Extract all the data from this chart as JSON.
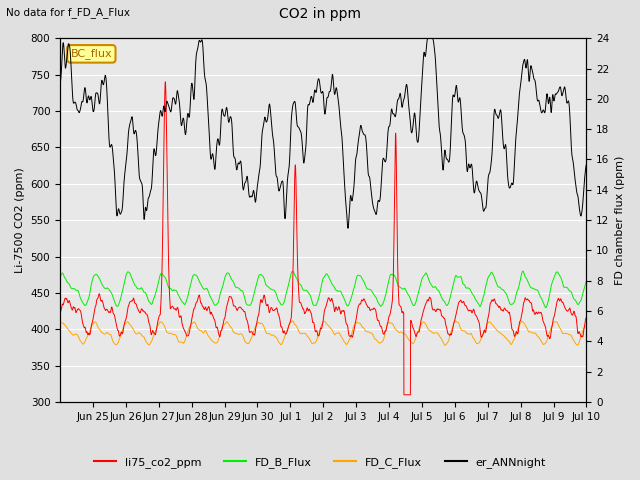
{
  "title": "CO2 in ppm",
  "subtitle": "No data for f_FD_A_Flux",
  "ylabel_left": "Li-7500 CO2 (ppm)",
  "ylabel_right": "FD chamber flux (ppm)",
  "ylim_left": [
    300,
    800
  ],
  "ylim_right": [
    0,
    24
  ],
  "yticks_left": [
    300,
    350,
    400,
    450,
    500,
    550,
    600,
    650,
    700,
    750,
    800
  ],
  "yticks_right": [
    0,
    2,
    4,
    6,
    8,
    10,
    12,
    14,
    16,
    18,
    20,
    22,
    24
  ],
  "bg_color": "#e0e0e0",
  "plot_bg_color": "#e8e8e8",
  "legend_labels": [
    "li75_co2_ppm",
    "FD_B_Flux",
    "FD_C_Flux",
    "er_ANNnight"
  ],
  "legend_colors": [
    "red",
    "#00dd00",
    "orange",
    "black"
  ],
  "bc_flux_box_color": "#ffff99",
  "bc_flux_border_color": "#cc8800",
  "xtick_labels": [
    "Jun 25",
    "Jun 26",
    "Jun 27",
    "Jun 28",
    "Jun 29",
    "Jun 30",
    "Jul 1",
    "Jul 2",
    "Jul 3",
    "Jul 4",
    "Jul 5",
    "Jul 6",
    "Jul 7",
    "Jul 8",
    "Jul 9",
    "Jul 10"
  ],
  "xtick_pos": [
    1,
    2,
    3,
    4,
    5,
    6,
    7,
    8,
    9,
    10,
    11,
    12,
    13,
    14,
    15,
    16
  ]
}
